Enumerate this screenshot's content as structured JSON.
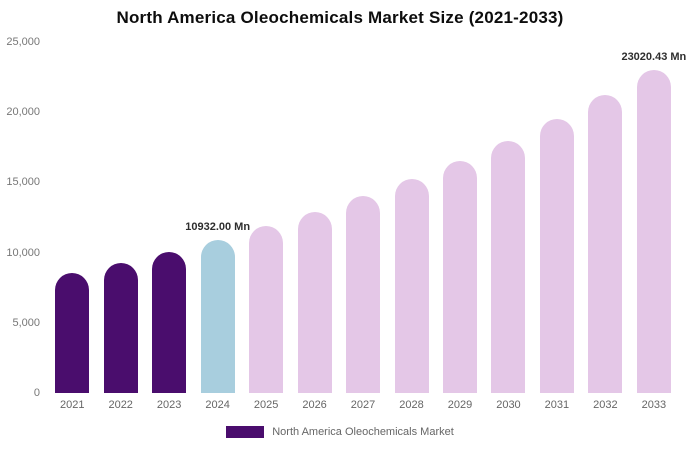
{
  "title": "North America Oleochemicals Market Size (2021-2033)",
  "y_axis": {
    "ticks": [
      "25,000",
      "20,000",
      "15,000",
      "10,000",
      "5,000",
      "0"
    ]
  },
  "legend": {
    "label": "North America Oleochemicals Market",
    "swatch_color": "#4a0d6d"
  },
  "chart_data": {
    "type": "bar",
    "title": "North America Oleochemicals Market Size (2021-2033)",
    "categories": [
      "2021",
      "2022",
      "2023",
      "2024",
      "2025",
      "2026",
      "2027",
      "2028",
      "2029",
      "2030",
      "2031",
      "2032",
      "2033"
    ],
    "values": [
      8530,
      9270,
      10070,
      10932.0,
      11880,
      12900,
      14010,
      15220,
      16540,
      17960,
      19520,
      21200,
      23020.43
    ],
    "unit": "Mn",
    "ylim": [
      0,
      25000
    ],
    "yticks": [
      25000,
      20000,
      15000,
      10000,
      5000,
      0
    ],
    "grid": "off",
    "legend_position": "bottom",
    "value_labels": {
      "2024": "10932.00 Mn",
      "2033": "23020.43 Mn"
    },
    "bar_colors": [
      "#4a0d6d",
      "#4a0d6d",
      "#4a0d6d",
      "#a8cede",
      "#e4c7e7",
      "#e4c7e7",
      "#e4c7e7",
      "#e4c7e7",
      "#e4c7e7",
      "#e4c7e7",
      "#e4c7e7",
      "#e4c7e7",
      "#e4c7e7"
    ]
  }
}
